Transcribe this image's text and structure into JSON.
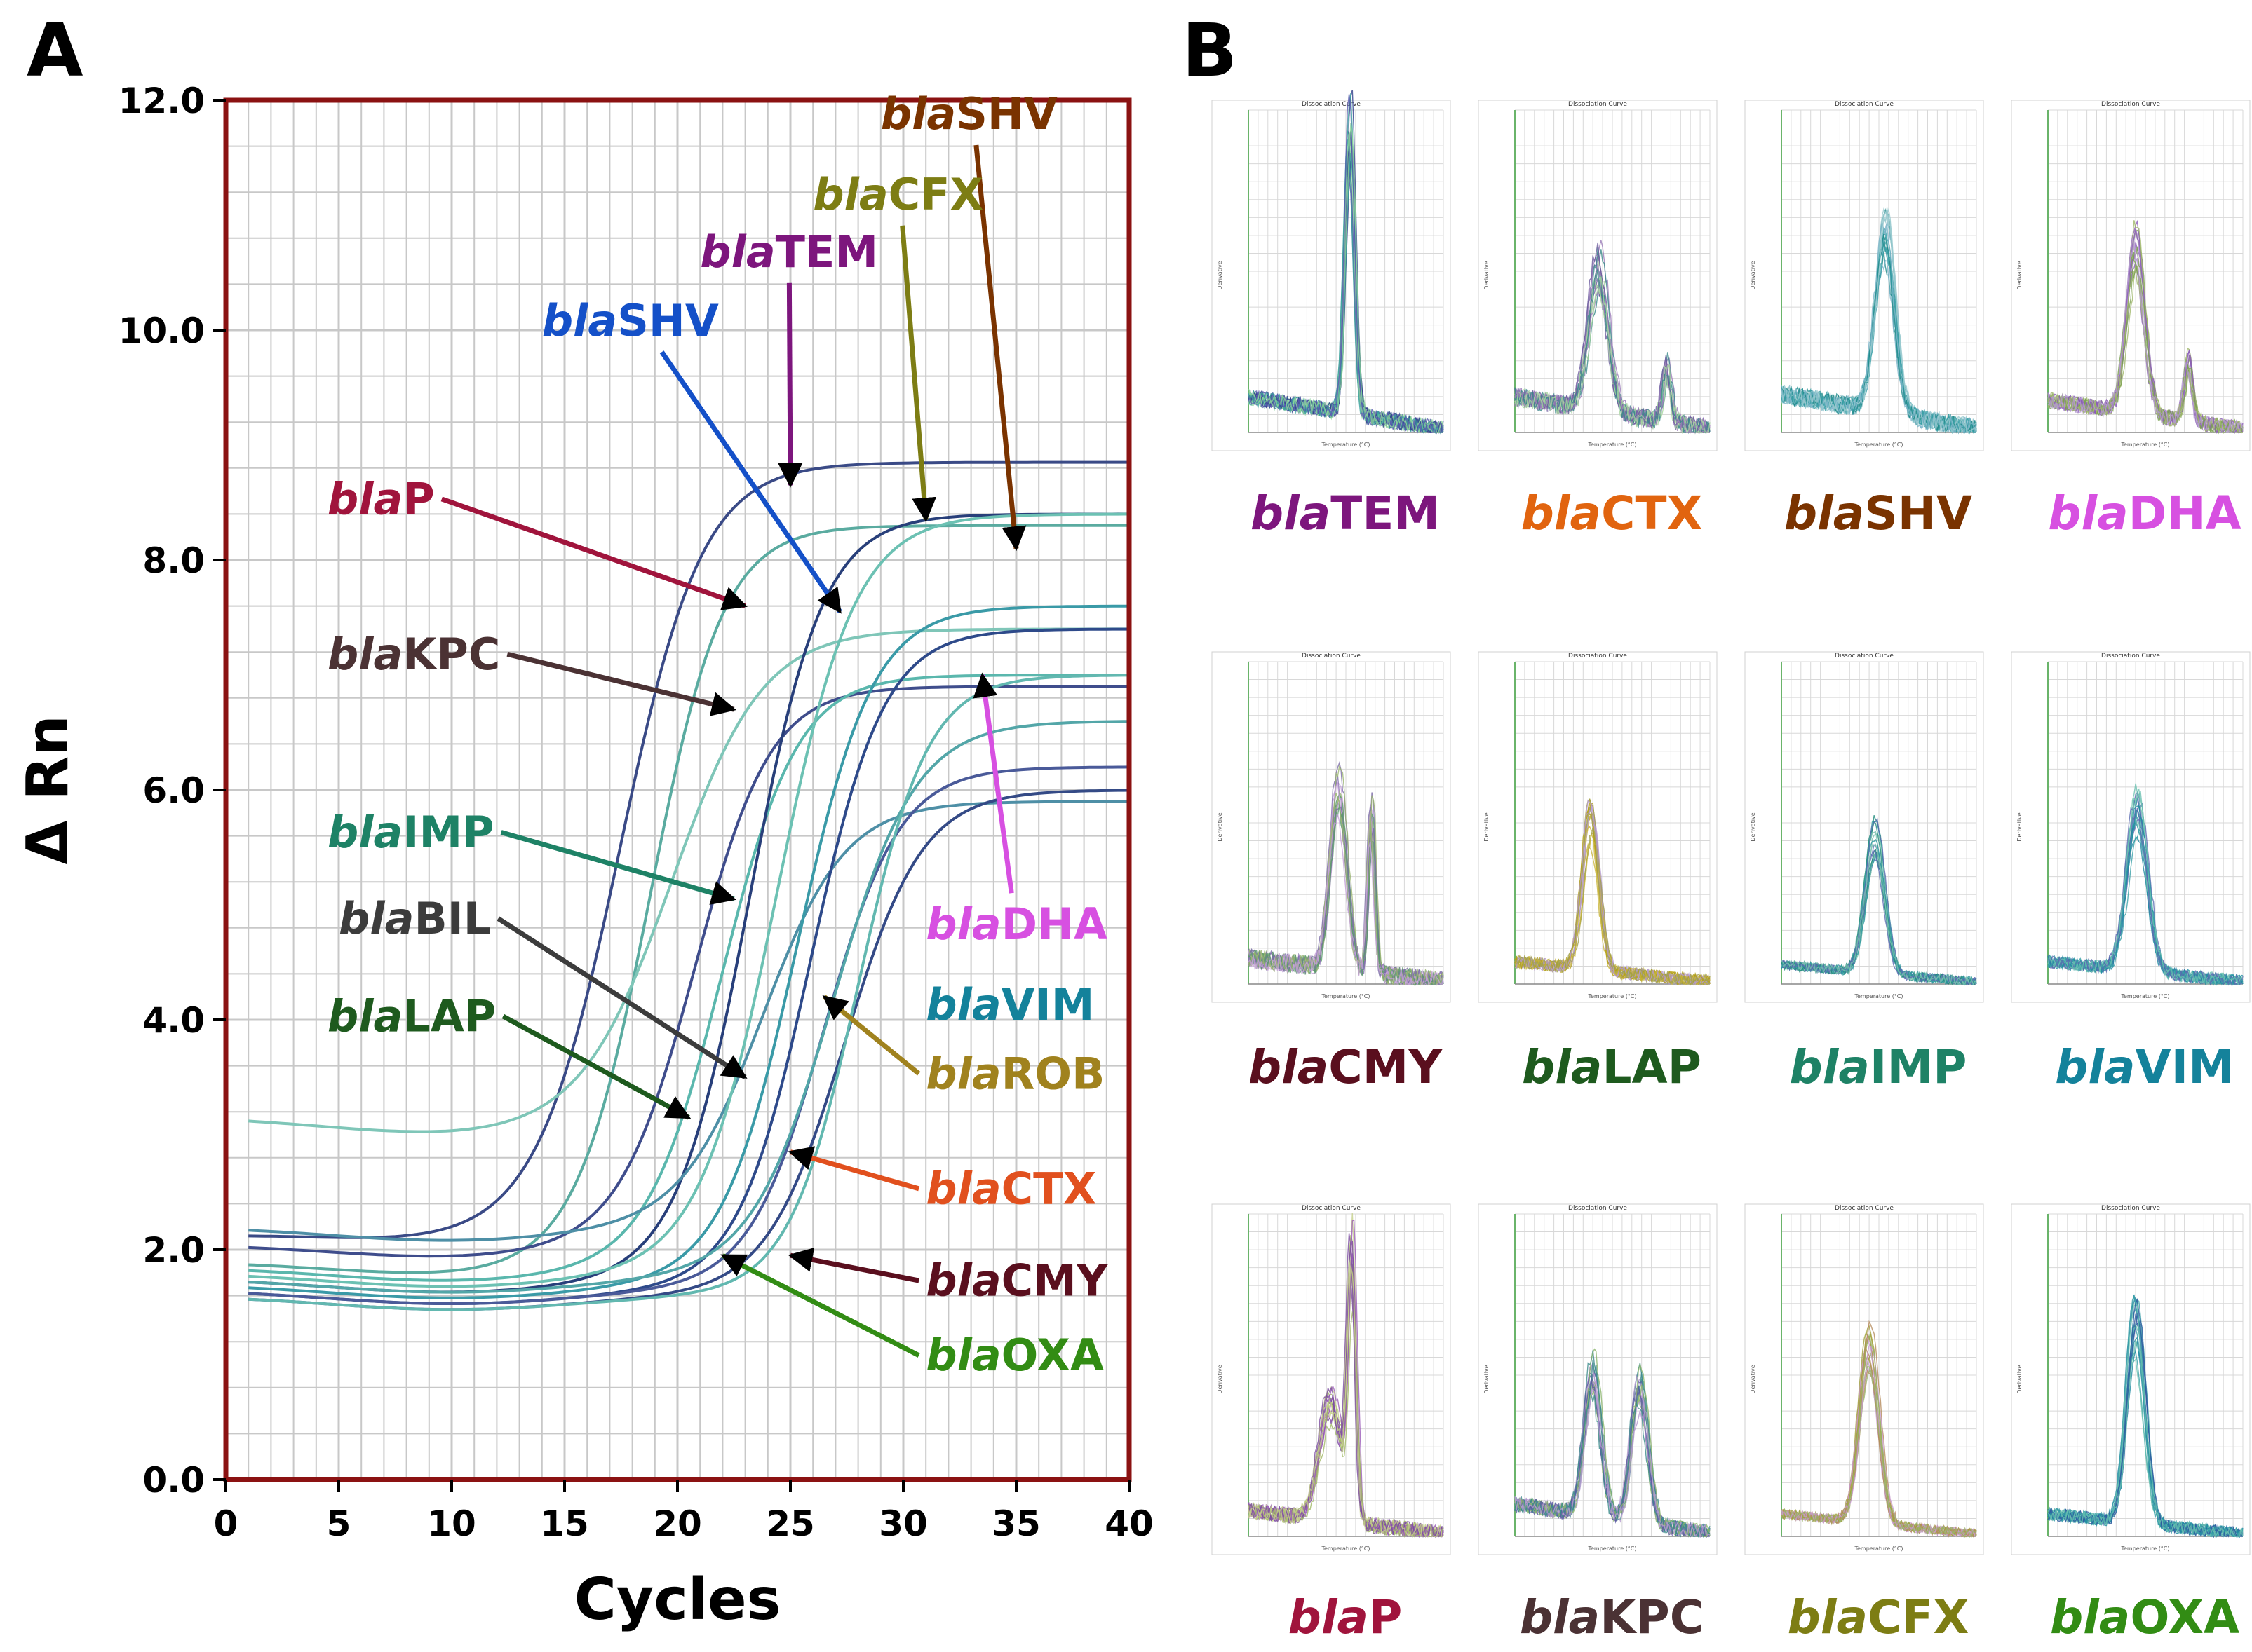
{
  "panels": {
    "a": "A",
    "b": "B"
  },
  "chart_data": [
    {
      "type": "line",
      "panel": "A",
      "title": "",
      "xlabel": "Cycles",
      "ylabel": "Δ Rn",
      "xlim": [
        0,
        40
      ],
      "ylim": [
        0,
        12
      ],
      "x_ticks": [
        "0",
        "5",
        "10",
        "15",
        "20",
        "25",
        "30",
        "35",
        "40"
      ],
      "y_ticks": [
        "0.0",
        "2.0",
        "4.0",
        "6.0",
        "8.0",
        "10.0",
        "12.0"
      ],
      "grid": true,
      "colors": {
        "frame": "#8b1212",
        "grid": "#c8c8c8"
      },
      "series": [
        {
          "name": "blaTEM",
          "color": "#3a4a86",
          "baseline": 2.15,
          "slope": 0.07,
          "plateau": 8.85,
          "midpoint": 17.5,
          "steep": 0.55
        },
        {
          "name": "blaP",
          "color": "#5aaba0",
          "baseline": 1.9,
          "slope": 0.01,
          "plateau": 8.3,
          "midpoint": 18.8,
          "steep": 0.62
        },
        {
          "name": "blaIMP",
          "color": "#7fc6b8",
          "baseline": 3.15,
          "slope": -0.03,
          "plateau": 7.4,
          "midpoint": 19.8,
          "steep": 0.5
        },
        {
          "name": "blaKPC",
          "color": "#3f4d8c",
          "baseline": 2.05,
          "slope": 0.01,
          "plateau": 6.9,
          "midpoint": 20.8,
          "steep": 0.6
        },
        {
          "name": "blaLAP",
          "color": "#5ab7ad",
          "baseline": 1.85,
          "slope": 0.0,
          "plateau": 7.0,
          "midpoint": 22.0,
          "steep": 0.6
        },
        {
          "name": "blaBIL",
          "color": "#283f7a",
          "baseline": 1.75,
          "slope": 0.0,
          "plateau": 8.4,
          "midpoint": 23.2,
          "steep": 0.62
        },
        {
          "name": "blaSHV",
          "color": "#4e8fa6",
          "baseline": 2.2,
          "slope": 0.0,
          "plateau": 5.9,
          "midpoint": 23.8,
          "steep": 0.55
        },
        {
          "name": "blaCFX",
          "color": "#6cc1b3",
          "baseline": 1.8,
          "slope": 0.0,
          "plateau": 8.4,
          "midpoint": 24.4,
          "steep": 0.58
        },
        {
          "name": "blaDHA",
          "color": "#3a9aa7",
          "baseline": 1.7,
          "slope": 0.0,
          "plateau": 7.6,
          "midpoint": 25.3,
          "steep": 0.6
        },
        {
          "name": "blaROB",
          "color": "#2e4a8a",
          "baseline": 1.65,
          "slope": 0.0,
          "plateau": 7.4,
          "midpoint": 25.9,
          "steep": 0.62
        },
        {
          "name": "blaVIM",
          "color": "#4a5a99",
          "baseline": 1.65,
          "slope": 0.0,
          "plateau": 6.2,
          "midpoint": 26.5,
          "steep": 0.6
        },
        {
          "name": "blaCTX",
          "color": "#53a6a8",
          "baseline": 1.75,
          "slope": 0.0,
          "plateau": 6.6,
          "midpoint": 26.9,
          "steep": 0.55
        },
        {
          "name": "blaCMY",
          "color": "#344a86",
          "baseline": 1.6,
          "slope": 0.0,
          "plateau": 6.0,
          "midpoint": 27.4,
          "steep": 0.58
        },
        {
          "name": "blaOXA",
          "color": "#62b8b0",
          "baseline": 1.6,
          "slope": 0.0,
          "plateau": 7.0,
          "midpoint": 28.0,
          "steep": 0.65
        }
      ],
      "annotations": [
        {
          "prefix": "bla",
          "gene": "SHV",
          "color": "#7a3300",
          "text_anchor": [
            29.0,
            11.75
          ],
          "arrow_tip": [
            35.0,
            8.1
          ]
        },
        {
          "prefix": "bla",
          "gene": "CFX",
          "color": "#7d7d14",
          "text_anchor": [
            26.0,
            11.05
          ],
          "arrow_tip": [
            31.0,
            8.35
          ]
        },
        {
          "prefix": "bla",
          "gene": "TEM",
          "color": "#7d167d",
          "text_anchor": [
            21.0,
            10.55
          ],
          "arrow_tip": [
            25.0,
            8.65
          ]
        },
        {
          "prefix": "bla",
          "gene": "SHV",
          "color": "#1450c8",
          "text_anchor": [
            14.0,
            9.95
          ],
          "arrow_tip": [
            27.2,
            7.55
          ]
        },
        {
          "prefix": "bla",
          "gene": "P",
          "color": "#a0143c",
          "text_anchor": [
            4.5,
            8.4
          ],
          "arrow_tip": [
            23.0,
            7.6
          ]
        },
        {
          "prefix": "bla",
          "gene": "KPC",
          "color": "#4b3234",
          "text_anchor": [
            4.5,
            7.05
          ],
          "arrow_tip": [
            22.5,
            6.7
          ]
        },
        {
          "prefix": "bla",
          "gene": "IMP",
          "color": "#1e8266",
          "text_anchor": [
            4.5,
            5.5
          ],
          "arrow_tip": [
            22.5,
            5.05
          ]
        },
        {
          "prefix": "bla",
          "gene": "BIL",
          "color": "#3c3c3c",
          "text_anchor": [
            5.0,
            4.75
          ],
          "arrow_tip": [
            23.0,
            3.5
          ]
        },
        {
          "prefix": "bla",
          "gene": "LAP",
          "color": "#1e5a1e",
          "text_anchor": [
            4.5,
            3.9
          ],
          "arrow_tip": [
            20.5,
            3.15
          ]
        },
        {
          "prefix": "bla",
          "gene": "DHA",
          "color": "#d750e1",
          "text_anchor": [
            31.0,
            4.7
          ],
          "arrow_tip": [
            33.5,
            7.0
          ]
        },
        {
          "prefix": "bla",
          "gene": "VIM",
          "color": "#14829b",
          "text_anchor": [
            31.0,
            4.0
          ],
          "arrow_tip": null
        },
        {
          "prefix": "bla",
          "gene": "ROB",
          "color": "#a0821e",
          "text_anchor": [
            31.0,
            3.4
          ],
          "arrow_tip": [
            26.5,
            4.2
          ]
        },
        {
          "prefix": "bla",
          "gene": "CTX",
          "color": "#e1501e",
          "text_anchor": [
            31.0,
            2.4
          ],
          "arrow_tip": [
            25.0,
            2.85
          ]
        },
        {
          "prefix": "bla",
          "gene": "CMY",
          "color": "#5a0f1e",
          "text_anchor": [
            31.0,
            1.6
          ],
          "arrow_tip": [
            25.0,
            1.95
          ]
        },
        {
          "prefix": "bla",
          "gene": "OXA",
          "color": "#328c14",
          "text_anchor": [
            31.0,
            0.95
          ],
          "arrow_tip": [
            22.0,
            1.95
          ]
        }
      ]
    },
    {
      "type": "line",
      "panel": "B",
      "title": "Dissociation Curve",
      "xlabel": "Temperature (°C)",
      "ylabel": "Derivative",
      "grid": true,
      "plots": [
        {
          "prefix": "bla",
          "gene": "TEM",
          "label_color": "#7d167d",
          "colors": [
            "#2e3f8a",
            "#3aa09e",
            "#5a5ab0",
            "#8ad49a"
          ],
          "peaks": [
            {
              "pos": 0.52,
              "height": 0.97,
              "width": 0.035
            }
          ],
          "baseline": 0.11,
          "noise": 0.05
        },
        {
          "prefix": "bla",
          "gene": "CTX",
          "label_color": "#e1640f",
          "colors": [
            "#6b5a9e",
            "#9a7ab8",
            "#3a8a8a",
            "#a8d4a0"
          ],
          "peaks": [
            {
              "pos": 0.43,
              "height": 0.49,
              "width": 0.07
            },
            {
              "pos": 0.78,
              "height": 0.19,
              "width": 0.03
            }
          ],
          "baseline": 0.11,
          "noise": 0.06
        },
        {
          "prefix": "bla",
          "gene": "SHV",
          "label_color": "#7a3300",
          "colors": [
            "#1e8a8a",
            "#3aa0a8",
            "#7ab4c8",
            "#9acad0"
          ],
          "peaks": [
            {
              "pos": 0.53,
              "height": 0.62,
              "width": 0.07
            }
          ],
          "baseline": 0.12,
          "noise": 0.06
        },
        {
          "prefix": "bla",
          "gene": "DHA",
          "label_color": "#d750e1",
          "colors": [
            "#8a5ab8",
            "#7aa050",
            "#a0b86a",
            "#b49ad0"
          ],
          "peaks": [
            {
              "pos": 0.45,
              "height": 0.57,
              "width": 0.065
            },
            {
              "pos": 0.72,
              "height": 0.2,
              "width": 0.03
            }
          ],
          "baseline": 0.1,
          "noise": 0.05
        },
        {
          "prefix": "bla",
          "gene": "CMY",
          "label_color": "#5a0f1e",
          "colors": [
            "#7a6aa8",
            "#5a9a6a",
            "#9ab470",
            "#c4a0d8"
          ],
          "peaks": [
            {
              "pos": 0.46,
              "height": 0.62,
              "width": 0.06
            },
            {
              "pos": 0.63,
              "height": 0.55,
              "width": 0.025
            }
          ],
          "baseline": 0.08,
          "noise": 0.06
        },
        {
          "prefix": "bla",
          "gene": "LAP",
          "label_color": "#1e5a1e",
          "colors": [
            "#b4a014",
            "#c8b43a",
            "#b49ad0",
            "#a0a050"
          ],
          "peaks": [
            {
              "pos": 0.39,
              "height": 0.52,
              "width": 0.06
            }
          ],
          "baseline": 0.07,
          "noise": 0.04
        },
        {
          "prefix": "bla",
          "gene": "IMP",
          "label_color": "#1e8266",
          "colors": [
            "#1e8a7a",
            "#2e9aa0",
            "#5a6ab0",
            "#7ac0b0"
          ],
          "peaks": [
            {
              "pos": 0.48,
              "height": 0.48,
              "width": 0.07
            }
          ],
          "baseline": 0.06,
          "noise": 0.03
        },
        {
          "prefix": "bla",
          "gene": "VIM",
          "label_color": "#14829b",
          "colors": [
            "#1e8aa0",
            "#3aa0a8",
            "#5a6ab0",
            "#6ac0b0"
          ],
          "peaks": [
            {
              "pos": 0.46,
              "height": 0.55,
              "width": 0.075
            }
          ],
          "baseline": 0.07,
          "noise": 0.04
        },
        {
          "prefix": "bla",
          "gene": "P",
          "label_color": "#a0143c",
          "colors": [
            "#9a5ab8",
            "#a0b864",
            "#7a4aa0",
            "#c4d08a"
          ],
          "peaks": [
            {
              "pos": 0.42,
              "height": 0.4,
              "width": 0.08
            },
            {
              "pos": 0.53,
              "height": 0.84,
              "width": 0.03
            }
          ],
          "baseline": 0.08,
          "noise": 0.05
        },
        {
          "prefix": "bla",
          "gene": "KPC",
          "label_color": "#4b3234",
          "colors": [
            "#5a5aa0",
            "#8ab46a",
            "#3a8a8a",
            "#b49ad0"
          ],
          "peaks": [
            {
              "pos": 0.4,
              "height": 0.48,
              "width": 0.06
            },
            {
              "pos": 0.64,
              "height": 0.46,
              "width": 0.06
            }
          ],
          "baseline": 0.1,
          "noise": 0.05
        },
        {
          "prefix": "bla",
          "gene": "CFX",
          "label_color": "#7d7d14",
          "colors": [
            "#a0a03a",
            "#b48a5a",
            "#c89ad0",
            "#9ab46a"
          ],
          "peaks": [
            {
              "pos": 0.45,
              "height": 0.6,
              "width": 0.07
            }
          ],
          "baseline": 0.07,
          "noise": 0.03
        },
        {
          "prefix": "bla",
          "gene": "OXA",
          "label_color": "#328c14",
          "colors": [
            "#1e8aa0",
            "#3aa0a8",
            "#2e5aa0",
            "#6ac0b0"
          ],
          "peaks": [
            {
              "pos": 0.45,
              "height": 0.67,
              "width": 0.065
            }
          ],
          "baseline": 0.07,
          "noise": 0.04
        }
      ]
    }
  ]
}
